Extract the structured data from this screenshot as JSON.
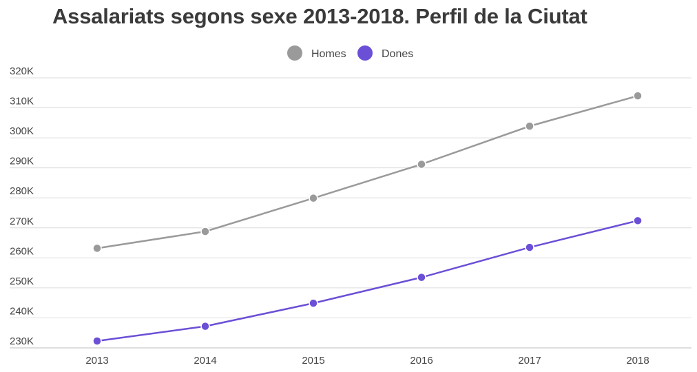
{
  "chart_data": {
    "type": "line",
    "title": "Assalariats segons sexe 2013-2018. Perfil de la Ciutat",
    "xlabel": "",
    "ylabel": "",
    "categories": [
      "2013",
      "2014",
      "2015",
      "2016",
      "2017",
      "2018"
    ],
    "y_ticks": [
      "230K",
      "240K",
      "250K",
      "260K",
      "270K",
      "280K",
      "290K",
      "300K",
      "310K",
      "320K"
    ],
    "ylim": [
      230000,
      320000
    ],
    "grid": true,
    "legend_position": "top-center",
    "series": [
      {
        "name": "Homes",
        "color": "#9a9a9a",
        "values": [
          263200,
          268800,
          279900,
          291200,
          303900,
          314000
        ]
      },
      {
        "name": "Dones",
        "color": "#6b4fd6",
        "values": [
          232300,
          237200,
          244900,
          253500,
          263500,
          272400
        ]
      }
    ]
  }
}
